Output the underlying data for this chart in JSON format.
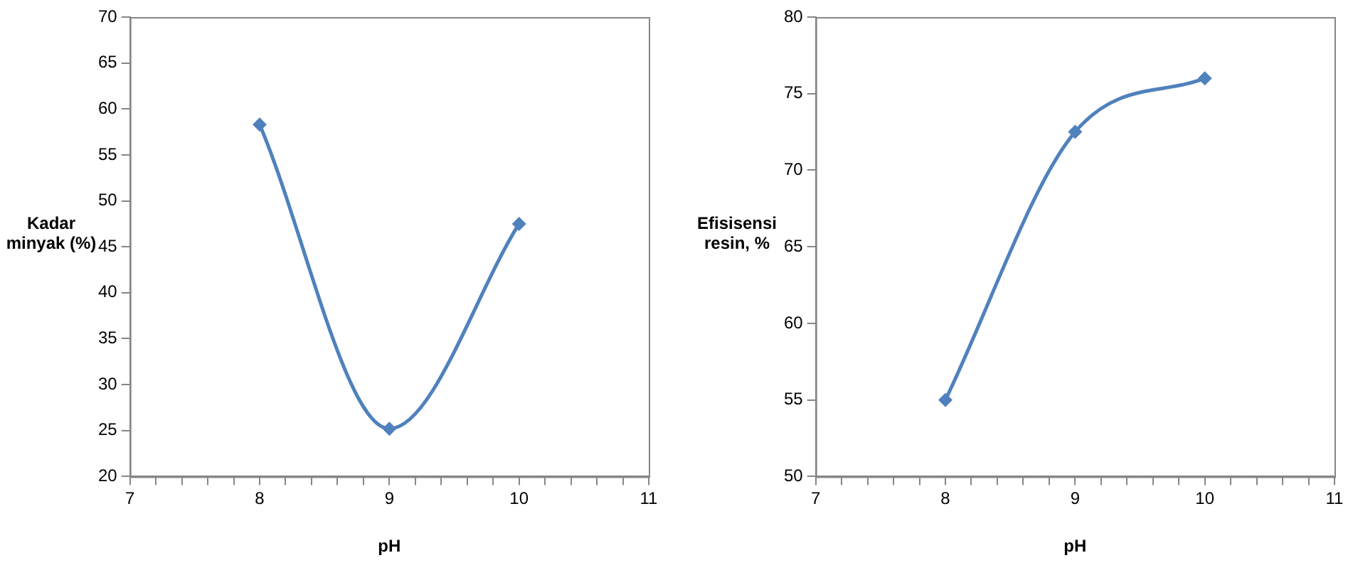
{
  "chart_data": [
    {
      "type": "line",
      "xlabel": "pH",
      "ylabel": "Kadar minyak (%)",
      "x": [
        8,
        9,
        10
      ],
      "series": [
        {
          "color": "#4f81bd",
          "values": [
            58.3,
            25.2,
            47.5
          ]
        }
      ],
      "xlim": [
        7,
        11
      ],
      "xticks": [
        7,
        {
          "value": 7.2,
          "label": null
        },
        {
          "value": 7.4,
          "label": null
        },
        {
          "value": 7.6,
          "label": null
        },
        {
          "value": 7.8,
          "label": null
        },
        8,
        {
          "value": 8.2,
          "label": null
        },
        {
          "value": 8.4,
          "label": null
        },
        {
          "value": 8.6,
          "label": null
        },
        {
          "value": 8.8,
          "label": null
        },
        9,
        {
          "value": 9.2,
          "label": null
        },
        {
          "value": 9.4,
          "label": null
        },
        {
          "value": 9.6,
          "label": null
        },
        {
          "value": 9.8,
          "label": null
        },
        10,
        {
          "value": 10.2,
          "label": null
        },
        {
          "value": 10.4,
          "label": null
        },
        {
          "value": 10.6,
          "label": null
        },
        {
          "value": 10.8,
          "label": null
        },
        11
      ],
      "ylim": [
        20,
        70
      ],
      "yticks": [
        20,
        25,
        30,
        35,
        40,
        45,
        50,
        55,
        60,
        65,
        70
      ],
      "grid": false,
      "legend": false,
      "marker": "diamond",
      "line_style": "solid"
    },
    {
      "type": "line",
      "xlabel": "pH",
      "ylabel": "Efisisensi resin, %",
      "x": [
        8,
        9,
        10
      ],
      "series": [
        {
          "color": "#4f81bd",
          "values": [
            55,
            72.5,
            76
          ]
        }
      ],
      "xlim": [
        7,
        11
      ],
      "xticks": [
        7,
        {
          "value": 7.2,
          "label": null
        },
        {
          "value": 7.4,
          "label": null
        },
        {
          "value": 7.6,
          "label": null
        },
        {
          "value": 7.8,
          "label": null
        },
        8,
        {
          "value": 8.2,
          "label": null
        },
        {
          "value": 8.4,
          "label": null
        },
        {
          "value": 8.6,
          "label": null
        },
        {
          "value": 8.8,
          "label": null
        },
        9,
        {
          "value": 9.2,
          "label": null
        },
        {
          "value": 9.4,
          "label": null
        },
        {
          "value": 9.6,
          "label": null
        },
        {
          "value": 9.8,
          "label": null
        },
        10,
        {
          "value": 10.2,
          "label": null
        },
        {
          "value": 10.4,
          "label": null
        },
        {
          "value": 10.6,
          "label": null
        },
        {
          "value": 10.8,
          "label": null
        },
        11
      ],
      "ylim": [
        50,
        80
      ],
      "yticks": [
        50,
        55,
        60,
        65,
        70,
        75,
        80
      ],
      "grid": false,
      "legend": false,
      "marker": "diamond",
      "line_style": "solid"
    }
  ]
}
